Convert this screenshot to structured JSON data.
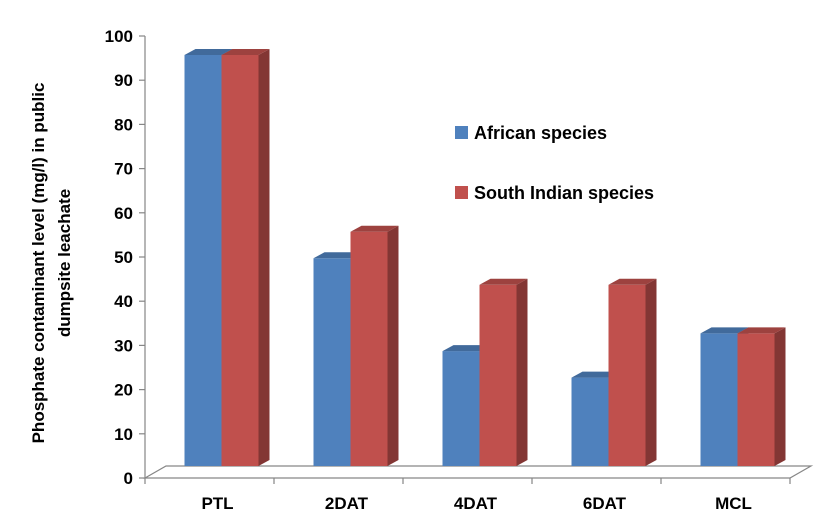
{
  "chart_data": {
    "type": "bar",
    "categories": [
      "PTL",
      "2DAT",
      "4DAT",
      "6DAT",
      "MCL"
    ],
    "series": [
      {
        "name": "African species",
        "values": [
          93,
          47,
          26,
          20,
          30
        ],
        "color": "#4f81bd"
      },
      {
        "name": "South Indian species",
        "values": [
          93,
          53,
          41,
          41,
          30
        ],
        "color": "#c0504d"
      }
    ],
    "ylabel_lines": [
      "Phosphate  contaminant level (mg/l) in public",
      "dumpsite leachate"
    ],
    "ylim": [
      0,
      100
    ],
    "yticks": [
      "0",
      "10",
      "20",
      "30",
      "40",
      "50",
      "60",
      "70",
      "80",
      "90",
      "100"
    ],
    "grid": false,
    "legend_position": "right-center",
    "style": "3d-clustered-column"
  }
}
